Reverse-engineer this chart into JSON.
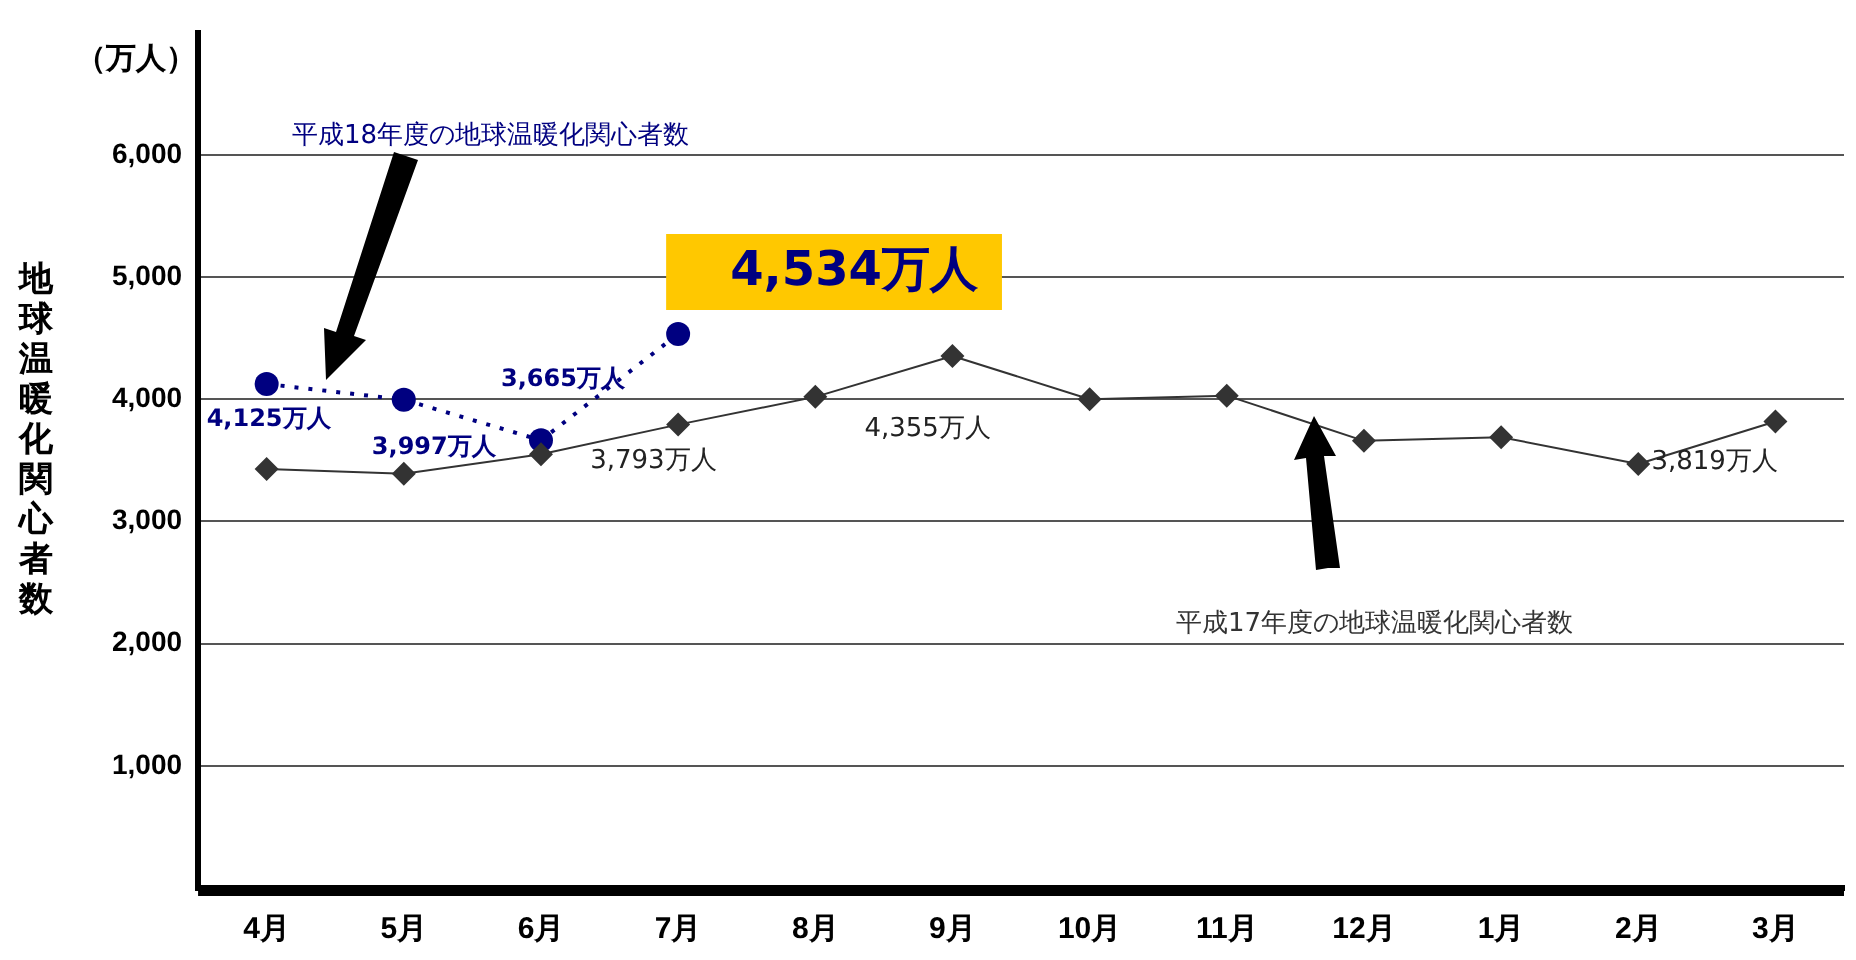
{
  "chart_data": {
    "type": "line",
    "ylabel": "地球温暖化関心者数",
    "annotations": [
      "（万人）"
    ],
    "categories": [
      "4月",
      "5月",
      "6月",
      "7月",
      "8月",
      "9月",
      "10月",
      "11月",
      "12月",
      "1月",
      "2月",
      "3月"
    ],
    "series": [
      {
        "name": "平成17年度の地球温暖化関心者数",
        "color": "#333333",
        "marker": "diamond",
        "line_style": "solid",
        "values": [
          3430,
          3390,
          3550,
          3793,
          4020,
          4355,
          4000,
          4030,
          3660,
          3690,
          3470,
          3819
        ],
        "value_labels": [
          null,
          null,
          null,
          "3,793万人",
          null,
          "4,355万人",
          null,
          null,
          null,
          null,
          null,
          "3,819万人"
        ]
      },
      {
        "name": "平成18年度の地球温暖化関心者数",
        "color": "#000080",
        "marker": "circle",
        "line_style": "dotted",
        "values": [
          4125,
          3997,
          3665,
          4534,
          null,
          null,
          null,
          null,
          null,
          null,
          null,
          null
        ],
        "value_labels": [
          "4,125万人",
          "3,997万人",
          "3,665万人",
          "4,534万人",
          null,
          null,
          null,
          null,
          null,
          null,
          null,
          null
        ]
      }
    ],
    "ylim": [
      0,
      7000
    ],
    "yticks": [
      {
        "value": 1000,
        "label": "1,000"
      },
      {
        "value": 2000,
        "label": "2,000"
      },
      {
        "value": 3000,
        "label": "3,000"
      },
      {
        "value": 4000,
        "label": "4,000"
      },
      {
        "value": 5000,
        "label": "5,000"
      },
      {
        "value": 6000,
        "label": "6,000"
      }
    ],
    "grid": "y",
    "legend": false
  }
}
